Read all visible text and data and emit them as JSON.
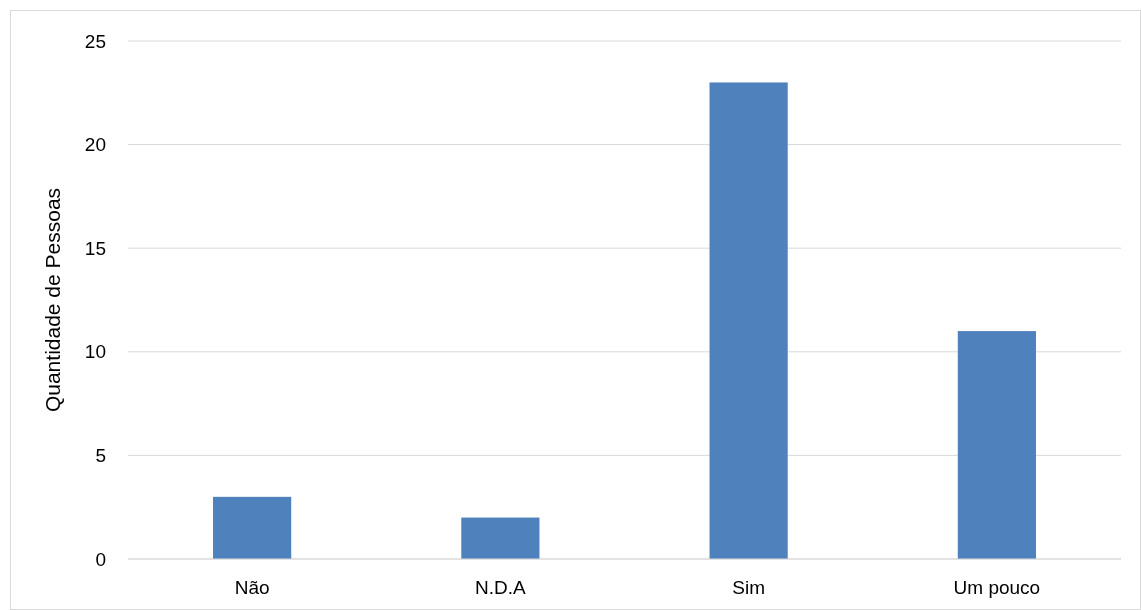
{
  "chart_data": {
    "type": "bar",
    "ylabel": "Quantidade de Pessoas",
    "categories": [
      "Não",
      "N.D.A",
      "Sim",
      "Um pouco"
    ],
    "values": [
      3,
      2,
      23,
      11
    ],
    "color": "#4f81bd",
    "ylim": [
      0,
      25
    ],
    "yticks": [
      0,
      5,
      10,
      15,
      20,
      25
    ],
    "grid": "y"
  }
}
